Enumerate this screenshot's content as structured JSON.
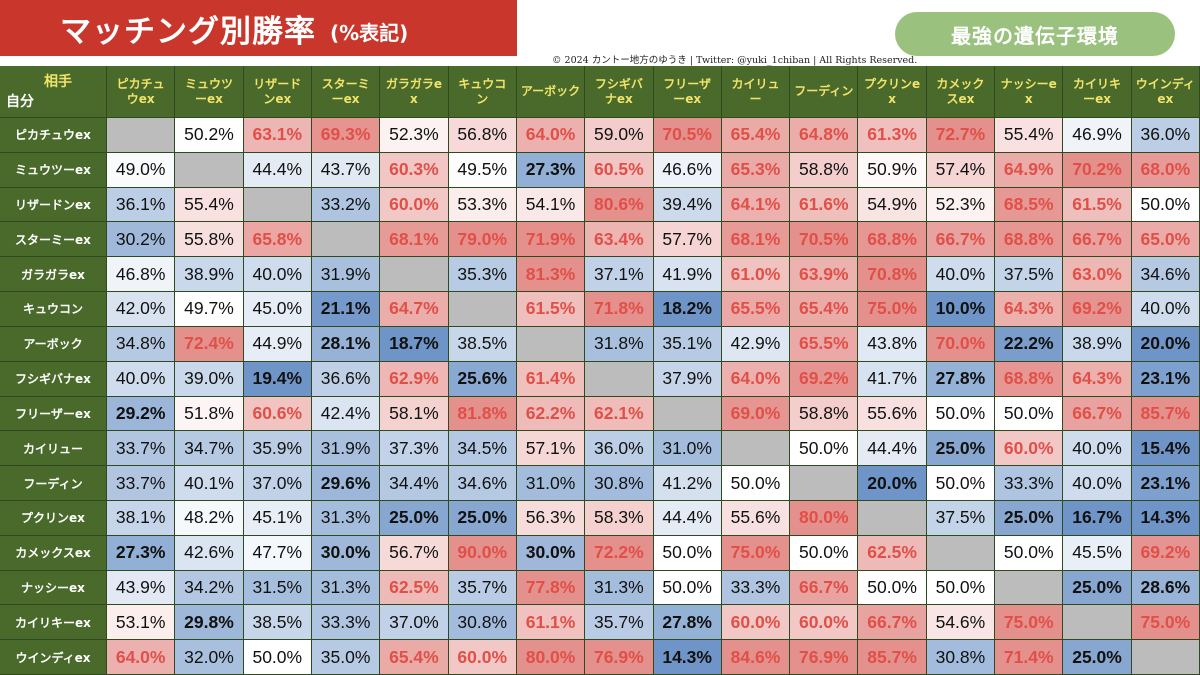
{
  "header": {
    "title": "マッチング別勝率",
    "subtitle": "(%表記)",
    "badge": "最強の遺伝子環境",
    "copyright": "© 2024 カントー地方のゆうき | Twitter: @yuki_1chiban | All Rights Reserved."
  },
  "colors": {
    "title_red": "#c9372c",
    "badge_green": "#9ac27e",
    "header_green": "#4a6a2c",
    "header_text_yellow": "#f2e36a",
    "high_winrate_red": "#e05048",
    "low_winrate_blue": "#6f95c8",
    "diagonal_gray": "#bcbcbc"
  },
  "chart_data": {
    "type": "heatmap",
    "corner_column_label": "相手",
    "corner_row_label": "自分",
    "columns": [
      "ピカチュウex",
      "ミュウツーex",
      "リザードンex",
      "スターミーex",
      "ガラガラex",
      "キュウコン",
      "アーボック",
      "フシギバナex",
      "フリーザーex",
      "カイリュー",
      "フーディン",
      "プクリンex",
      "カメックスex",
      "ナッシーex",
      "カイリキーex",
      "ウインディex"
    ],
    "rows": [
      "ピカチュウex",
      "ミュウツーex",
      "リザードンex",
      "スターミーex",
      "ガラガラex",
      "キュウコン",
      "アーボック",
      "フシギバナex",
      "フリーザーex",
      "カイリュー",
      "フーディン",
      "プクリンex",
      "カメックスex",
      "ナッシーex",
      "カイリキーex",
      "ウインディex"
    ],
    "values": [
      [
        null,
        "50.2%",
        "63.1%",
        "69.3%",
        "52.3%",
        "56.8%",
        "64.0%",
        "59.0%",
        "70.5%",
        "65.4%",
        "64.8%",
        "61.3%",
        "72.7%",
        "55.4%",
        "46.9%",
        "36.0%"
      ],
      [
        "49.0%",
        null,
        "44.4%",
        "43.7%",
        "60.3%",
        "49.5%",
        "27.3%",
        "60.5%",
        "46.6%",
        "65.3%",
        "58.8%",
        "50.9%",
        "57.4%",
        "64.9%",
        "70.2%",
        "68.0%"
      ],
      [
        "36.1%",
        "55.4%",
        null,
        "33.2%",
        "60.0%",
        "53.3%",
        "54.1%",
        "80.6%",
        "39.4%",
        "64.1%",
        "61.6%",
        "54.9%",
        "52.3%",
        "68.5%",
        "61.5%",
        "50.0%"
      ],
      [
        "30.2%",
        "55.8%",
        "65.8%",
        null,
        "68.1%",
        "79.0%",
        "71.9%",
        "63.4%",
        "57.7%",
        "68.1%",
        "70.5%",
        "68.8%",
        "66.7%",
        "68.8%",
        "66.7%",
        "65.0%"
      ],
      [
        "46.8%",
        "38.9%",
        "40.0%",
        "31.9%",
        null,
        "35.3%",
        "81.3%",
        "37.1%",
        "41.9%",
        "61.0%",
        "63.9%",
        "70.8%",
        "40.0%",
        "37.5%",
        "63.0%",
        "34.6%"
      ],
      [
        "42.0%",
        "49.7%",
        "45.0%",
        "21.1%",
        "64.7%",
        null,
        "61.5%",
        "71.8%",
        "18.2%",
        "65.5%",
        "65.4%",
        "75.0%",
        "10.0%",
        "64.3%",
        "69.2%",
        "40.0%"
      ],
      [
        "34.8%",
        "72.4%",
        "44.9%",
        "28.1%",
        "18.7%",
        "38.5%",
        null,
        "31.8%",
        "35.1%",
        "42.9%",
        "65.5%",
        "43.8%",
        "70.0%",
        "22.2%",
        "38.9%",
        "20.0%"
      ],
      [
        "40.0%",
        "39.0%",
        "19.4%",
        "36.6%",
        "62.9%",
        "25.6%",
        "61.4%",
        null,
        "37.9%",
        "64.0%",
        "69.2%",
        "41.7%",
        "27.8%",
        "68.8%",
        "64.3%",
        "23.1%"
      ],
      [
        "29.2%",
        "51.8%",
        "60.6%",
        "42.4%",
        "58.1%",
        "81.8%",
        "62.2%",
        "62.1%",
        null,
        "69.0%",
        "58.8%",
        "55.6%",
        "50.0%",
        "50.0%",
        "66.7%",
        "85.7%"
      ],
      [
        "33.7%",
        "34.7%",
        "35.9%",
        "31.9%",
        "37.3%",
        "34.5%",
        "57.1%",
        "36.0%",
        "31.0%",
        null,
        "50.0%",
        "44.4%",
        "25.0%",
        "60.0%",
        "40.0%",
        "15.4%"
      ],
      [
        "33.7%",
        "40.1%",
        "37.0%",
        "29.6%",
        "34.4%",
        "34.6%",
        "31.0%",
        "30.8%",
        "41.2%",
        "50.0%",
        null,
        "20.0%",
        "50.0%",
        "33.3%",
        "40.0%",
        "23.1%"
      ],
      [
        "38.1%",
        "48.2%",
        "45.1%",
        "31.3%",
        "25.0%",
        "25.0%",
        "56.3%",
        "58.3%",
        "44.4%",
        "55.6%",
        "80.0%",
        null,
        "37.5%",
        "25.0%",
        "16.7%",
        "14.3%"
      ],
      [
        "27.3%",
        "42.6%",
        "47.7%",
        "30.0%",
        "56.7%",
        "90.0%",
        "30.0%",
        "72.2%",
        "50.0%",
        "75.0%",
        "50.0%",
        "62.5%",
        null,
        "50.0%",
        "45.5%",
        "69.2%"
      ],
      [
        "43.9%",
        "34.2%",
        "31.5%",
        "31.3%",
        "62.5%",
        "35.7%",
        "77.8%",
        "31.3%",
        "50.0%",
        "33.3%",
        "66.7%",
        "50.0%",
        "50.0%",
        null,
        "25.0%",
        "28.6%"
      ],
      [
        "53.1%",
        "29.8%",
        "38.5%",
        "33.3%",
        "37.0%",
        "30.8%",
        "61.1%",
        "35.7%",
        "27.8%",
        "60.0%",
        "60.0%",
        "66.7%",
        "54.6%",
        "75.0%",
        null,
        "75.0%"
      ],
      [
        "64.0%",
        "32.0%",
        "50.0%",
        "35.0%",
        "65.4%",
        "60.0%",
        "80.0%",
        "76.9%",
        "14.3%",
        "84.6%",
        "76.9%",
        "85.7%",
        "30.8%",
        "71.4%",
        "25.0%",
        null
      ]
    ]
  }
}
